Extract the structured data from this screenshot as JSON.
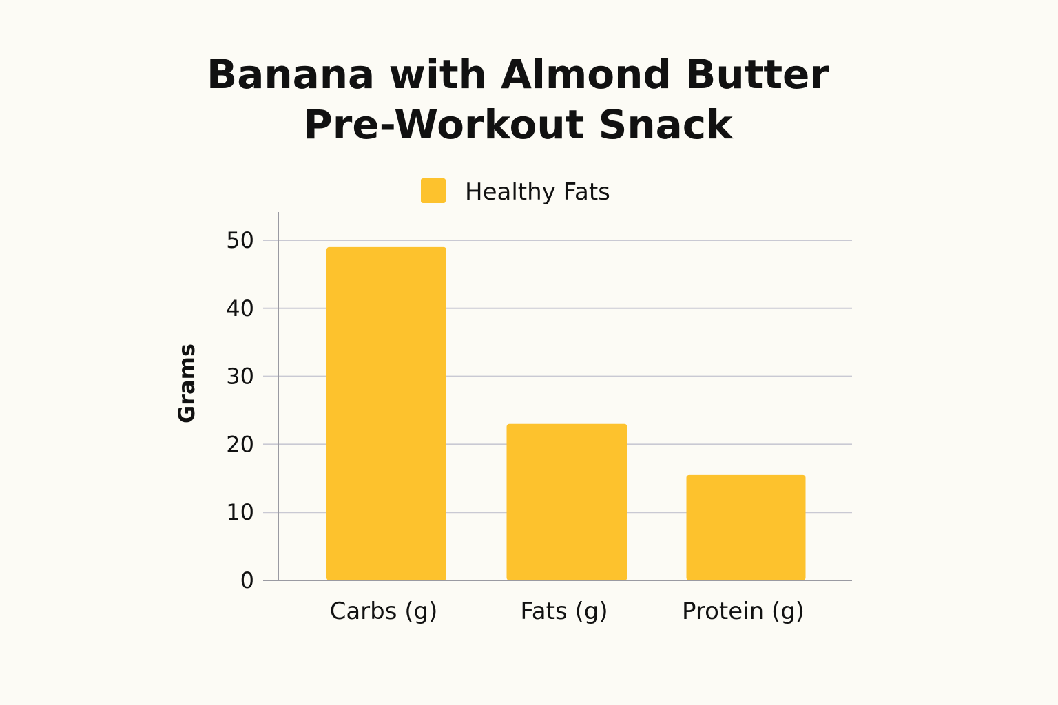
{
  "chart_data": {
    "type": "bar",
    "title_lines": [
      "Banana with Almond Butter",
      "Pre-Workout Snack"
    ],
    "categories": [
      "Carbs (g)",
      "Fats (g)",
      "Protein (g)"
    ],
    "series": [
      {
        "name": "Healthy Fats",
        "values": [
          49,
          23,
          15.5
        ]
      }
    ],
    "xlabel": "",
    "ylabel": "Grams",
    "ylim": [
      0,
      50
    ],
    "yticks": [
      0,
      10,
      20,
      30,
      40,
      50
    ],
    "grid": true,
    "legend_position": "top-center",
    "colors": {
      "bar": "#fdc22d",
      "grid": "#c9c9d3",
      "axis": "#9a9aa2",
      "background": "#fcfbf5"
    }
  }
}
